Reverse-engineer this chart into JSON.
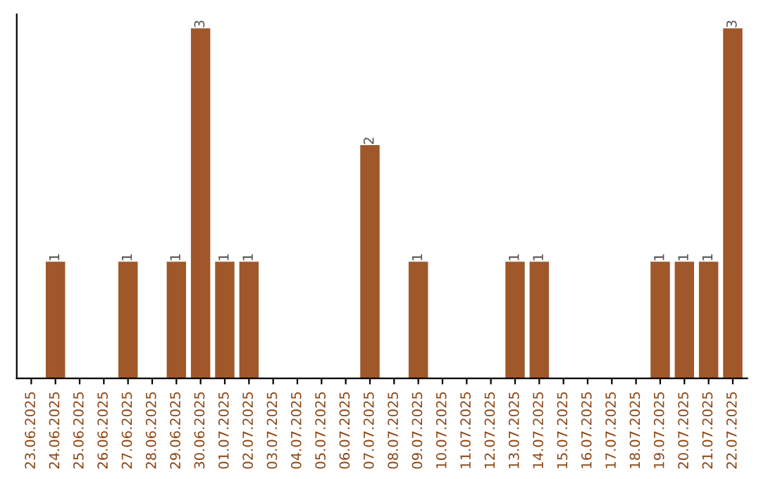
{
  "chart_data": {
    "type": "bar",
    "categories": [
      "23.06.2025",
      "24.06.2025",
      "25.06.2025",
      "26.06.2025",
      "27.06.2025",
      "28.06.2025",
      "29.06.2025",
      "30.06.2025",
      "01.07.2025",
      "02.07.2025",
      "03.07.2025",
      "04.07.2025",
      "05.07.2025",
      "06.07.2025",
      "07.07.2025",
      "08.07.2025",
      "09.07.2025",
      "10.07.2025",
      "11.07.2025",
      "12.07.2025",
      "13.07.2025",
      "14.07.2025",
      "15.07.2025",
      "16.07.2025",
      "17.07.2025",
      "18.07.2025",
      "19.07.2025",
      "20.07.2025",
      "21.07.2025",
      "22.07.2025"
    ],
    "values": [
      0,
      1,
      0,
      0,
      1,
      0,
      1,
      3,
      1,
      1,
      0,
      0,
      0,
      0,
      2,
      0,
      1,
      0,
      0,
      0,
      1,
      1,
      0,
      0,
      0,
      0,
      1,
      1,
      1,
      3
    ],
    "value_labels": [
      null,
      "1",
      null,
      null,
      "1",
      null,
      "1",
      "3",
      "1",
      "1",
      null,
      null,
      null,
      null,
      "2",
      null,
      "1",
      null,
      null,
      null,
      "1",
      "1",
      null,
      null,
      null,
      null,
      "1",
      "1",
      "1",
      "3"
    ],
    "color": "#a0572a",
    "tick_labels": "x",
    "grid": false,
    "legend": false
  }
}
